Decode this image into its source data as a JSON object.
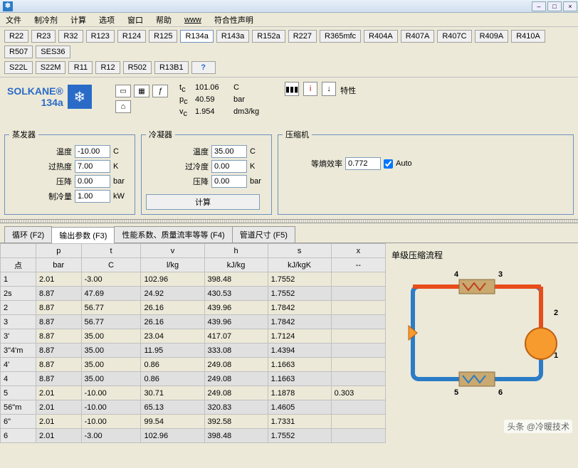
{
  "window": {
    "min": "–",
    "max": "□",
    "close": "×"
  },
  "menu": [
    "文件",
    "制冷剂",
    "计算",
    "选项",
    "窗口",
    "帮助",
    "www",
    "符合性声明"
  ],
  "refrigerants_row1": [
    "R22",
    "R23",
    "R32",
    "R123",
    "R124",
    "R125",
    "R134a",
    "R143a",
    "R152a",
    "R227",
    "R365mfc",
    "R404A",
    "R407A",
    "R407C",
    "R409A",
    "R410A",
    "R507",
    "SES36"
  ],
  "refrigerants_row2": [
    "S22L",
    "S22M",
    "R11",
    "R12",
    "R502",
    "R13B1"
  ],
  "help_btn": "?",
  "brand": {
    "name": "SOLKANE®",
    "sub": "134a"
  },
  "critical": {
    "tc_sym": "t",
    "tc_sub": "c",
    "tc_val": "101.06",
    "tc_unit": "C",
    "pc_sym": "p",
    "pc_sub": "c",
    "pc_val": "40.59",
    "pc_unit": "bar",
    "vc_sym": "v",
    "vc_sub": "c",
    "vc_val": "1.954",
    "vc_unit": "dm3/kg"
  },
  "top_icon_label": "特性",
  "evaporator": {
    "legend": "蒸发器",
    "temp_lbl": "温度",
    "temp_val": "-10.00",
    "temp_unit": "C",
    "sh_lbl": "过热度",
    "sh_val": "7.00",
    "sh_unit": "K",
    "dp_lbl": "压降",
    "dp_val": "0.00",
    "dp_unit": "bar",
    "cap_lbl": "制冷量",
    "cap_val": "1.00",
    "cap_unit": "kW"
  },
  "condenser": {
    "legend": "冷凝器",
    "temp_lbl": "温度",
    "temp_val": "35.00",
    "temp_unit": "C",
    "sc_lbl": "过冷度",
    "sc_val": "0.00",
    "sc_unit": "K",
    "dp_lbl": "压降",
    "dp_val": "0.00",
    "dp_unit": "bar",
    "calc_btn": "计算"
  },
  "compressor": {
    "legend": "压缩机",
    "eff_lbl": "等熵效率",
    "eff_val": "0.772",
    "auto": "Auto"
  },
  "tabs": {
    "t1": "循环 (F2)",
    "t2": "输出参数 (F3)",
    "t3": "性能系数、质量流率等等 (F4)",
    "t4": "管道尺寸 (F5)"
  },
  "table": {
    "headers": [
      "",
      "p",
      "t",
      "v",
      "h",
      "s",
      "x"
    ],
    "units": [
      "点",
      "bar",
      "C",
      "l/kg",
      "kJ/kg",
      "kJ/kgK",
      "--"
    ],
    "rows": [
      {
        "shaded": false,
        "c": [
          "1",
          "2.01",
          "-3.00",
          "102.96",
          "398.48",
          "1.7552",
          ""
        ]
      },
      {
        "shaded": true,
        "c": [
          "2s",
          "8.87",
          "47.69",
          "24.92",
          "430.53",
          "1.7552",
          ""
        ]
      },
      {
        "shaded": false,
        "c": [
          "2",
          "8.87",
          "56.77",
          "26.16",
          "439.96",
          "1.7842",
          ""
        ]
      },
      {
        "shaded": true,
        "c": [
          "3",
          "8.87",
          "56.77",
          "26.16",
          "439.96",
          "1.7842",
          ""
        ]
      },
      {
        "shaded": false,
        "c": [
          "3'",
          "8.87",
          "35.00",
          "23.04",
          "417.07",
          "1.7124",
          ""
        ]
      },
      {
        "shaded": true,
        "c": [
          "3\"4'm",
          "8.87",
          "35.00",
          "11.95",
          "333.08",
          "1.4394",
          ""
        ]
      },
      {
        "shaded": false,
        "c": [
          "4'",
          "8.87",
          "35.00",
          "0.86",
          "249.08",
          "1.1663",
          ""
        ]
      },
      {
        "shaded": true,
        "c": [
          "4",
          "8.87",
          "35.00",
          "0.86",
          "249.08",
          "1.1663",
          ""
        ]
      },
      {
        "shaded": false,
        "c": [
          "5",
          "2.01",
          "-10.00",
          "30.71",
          "249.08",
          "1.1878",
          "0.303"
        ]
      },
      {
        "shaded": true,
        "c": [
          "56\"m",
          "2.01",
          "-10.00",
          "65.13",
          "320.83",
          "1.4605",
          ""
        ]
      },
      {
        "shaded": false,
        "c": [
          "6\"",
          "2.01",
          "-10.00",
          "99.54",
          "392.58",
          "1.7331",
          ""
        ]
      },
      {
        "shaded": true,
        "c": [
          "6",
          "2.01",
          "-3.00",
          "102.96",
          "398.48",
          "1.7552",
          ""
        ]
      }
    ]
  },
  "diagram": {
    "title": "单级压缩流程",
    "labels": {
      "n1": "1",
      "n2": "2",
      "n3": "3",
      "n4": "4",
      "n5": "5",
      "n6": "6"
    },
    "colors": {
      "hot": "#e84c1a",
      "warm": "#f79b2e",
      "cold": "#2a7cc7",
      "hx": "#c9a96f",
      "comp": "#f79b2e"
    }
  },
  "watermark": "头条 @冷暖技术"
}
